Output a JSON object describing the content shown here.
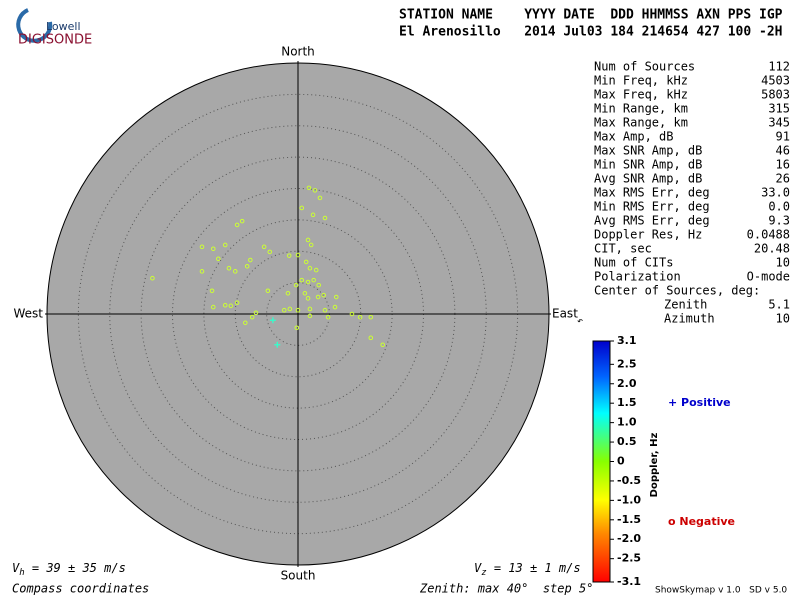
{
  "logo": {
    "top": "Lowell",
    "bottom": "DIGISONDE"
  },
  "header": {
    "line1": "STATION NAME    YYYY DATE  DDD HHMMSS AXN PPS IGP",
    "line2": "El Arenosillo   2014 Jul03 184 214654 427 100 -2H"
  },
  "stats": {
    "rows": [
      [
        "Num of Sources",
        "112"
      ],
      [
        "Min Freq, kHz",
        "4503"
      ],
      [
        "Max Freq, kHz",
        "5803"
      ],
      [
        "Min Range, km",
        "315"
      ],
      [
        "Max Range, km",
        "345"
      ],
      [
        "Max Amp, dB",
        "91"
      ],
      [
        "Max SNR Amp, dB",
        "46"
      ],
      [
        "Min SNR Amp, dB",
        "16"
      ],
      [
        "Avg SNR Amp, dB",
        "26"
      ],
      [
        "Max RMS Err, deg",
        "33.0"
      ],
      [
        "Min RMS Err, deg",
        "0.0"
      ],
      [
        "Avg RMS Err, deg",
        "9.3"
      ],
      [
        "Doppler Res, Hz",
        "0.0488"
      ],
      [
        "CIT, sec",
        "20.48"
      ],
      [
        "Num of CITs",
        "10"
      ],
      [
        "Polarization",
        "O-mode"
      ]
    ],
    "center_title": "Center of Sources, deg:",
    "center_rows": [
      [
        "Zenith",
        "5.1"
      ],
      [
        "Azimuth",
        "10"
      ]
    ]
  },
  "chart_data": {
    "type": "skymap",
    "directions": {
      "north": "North",
      "south": "South",
      "east": "East",
      "west": "West"
    },
    "rlim": [
      0,
      40
    ],
    "rticks": [
      5,
      10,
      15,
      20,
      25,
      30,
      35
    ],
    "series": [
      {
        "color": "#ccff33",
        "marker": "circle",
        "x": [
          1.75,
          2.7,
          3.5,
          0.6,
          2.4,
          4.3,
          -8.9,
          -9.7,
          1.6,
          2.1,
          -11.6,
          -15.3,
          -13.5,
          -5.4,
          -4.5,
          -7.6,
          -1.4,
          0,
          -12.7,
          -15.3,
          -11.0,
          -10.0,
          -8.1,
          1.3,
          1.9,
          2.9,
          -23.2,
          0.6,
          1.6,
          2.5,
          -0.3,
          3.3,
          -13.7,
          -4.8,
          -1.6,
          1.1,
          4.1,
          6.1,
          1.6,
          3.2,
          -9.7,
          -10.7,
          -11.6,
          -13.5,
          -6.7,
          -2.2,
          -1.3,
          0,
          1.9,
          4.3,
          5.9,
          8.6,
          1.9,
          4.8,
          -7.3,
          -8.4,
          -0.2,
          9.9,
          11.6,
          11.6,
          13.5
        ],
        "y": [
          20.1,
          19.7,
          18.5,
          16.9,
          15.8,
          15.3,
          14.8,
          14.2,
          11.8,
          11.0,
          11.0,
          10.7,
          10.4,
          10.7,
          9.9,
          8.6,
          9.3,
          9.4,
          8.8,
          6.8,
          7.3,
          6.8,
          7.6,
          8.3,
          7.3,
          7.0,
          5.7,
          5.4,
          5.1,
          5.4,
          4.6,
          4.6,
          3.7,
          3.7,
          3.3,
          3.3,
          3.0,
          2.7,
          2.5,
          2.7,
          1.8,
          1.3,
          1.4,
          1.1,
          0.2,
          0.6,
          0.8,
          0.6,
          0.8,
          0.6,
          1.1,
          0,
          -0.3,
          -0.5,
          -0.5,
          -1.4,
          -2.2,
          -0.5,
          -0.5,
          -3.8,
          -4.9
        ]
      },
      {
        "color": "#33ffcc",
        "marker": "plus",
        "x": [
          -3.3,
          -4.0
        ],
        "y": [
          -4.9,
          -1.0
        ]
      }
    ],
    "colorbar": {
      "label": "Doppler, Hz",
      "clim": [
        -3.1,
        3.1
      ],
      "ticks": [
        3.1,
        2.5,
        {
          "value": 2,
          "label": "2.0"
        },
        1.5,
        {
          "value": 1,
          "label": "1.0"
        },
        0.5,
        0,
        {
          "value": -0.5,
          "label": "-0.5"
        },
        {
          "value": -1,
          "label": "-1.0"
        },
        {
          "value": -1.5,
          "label": "-1.5"
        },
        {
          "value": -2,
          "label": "-2.0"
        },
        {
          "value": -2.5,
          "label": "-2.5"
        },
        {
          "value": -3.1,
          "label": "-3.1"
        }
      ]
    },
    "legend": {
      "positive": "+ Positive",
      "negative": "o Negative"
    },
    "vh": {
      "symbol": "V",
      "sub": "h",
      "text": " = 39 ± 35 m/s"
    },
    "vz": {
      "symbol": "V",
      "sub": "z",
      "text": " = 13 ± 1 m/s"
    },
    "coords_note": "Compass coordinates",
    "zenith_note": "Zenith: max 40°  step 5°",
    "version": "ShowSkymap v 1.0   SD v 5.0"
  }
}
